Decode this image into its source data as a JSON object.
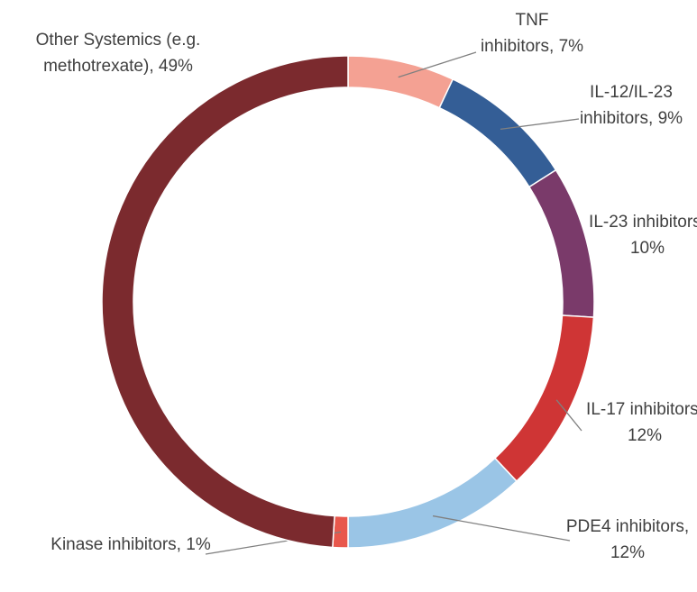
{
  "chart_data": {
    "type": "donut",
    "categories": [
      "TNF inhibitors,",
      "IL-12/IL-23 inhibitors,",
      "IL-23 inhibitors,",
      "IL-17 inhibitors,",
      "PDE4 inhibitors,",
      "Kinase inhibitors,",
      "Other Systemics (e.g. methotrexate),"
    ],
    "values": [
      7,
      9,
      10,
      12,
      12,
      1,
      49
    ],
    "value_labels": [
      "7%",
      "9%",
      "10%",
      "12%",
      "12%",
      "1%",
      "49%"
    ],
    "colors": [
      "#f4a193",
      "#345e96",
      "#7a3a6a",
      "#cf3535",
      "#9ac5e6",
      "#e8574c",
      "#7b2a2e"
    ]
  }
}
